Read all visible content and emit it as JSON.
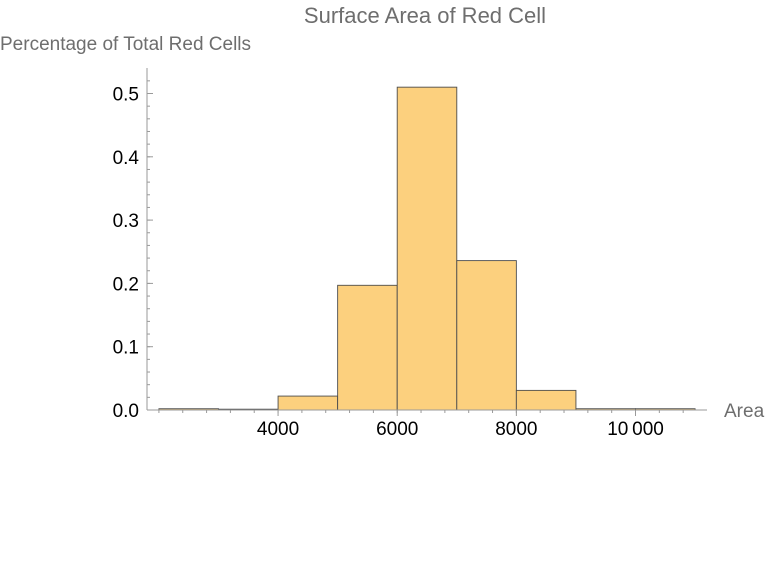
{
  "chart_data": {
    "type": "bar",
    "subtype": "histogram",
    "title": "Surface Area of Red Cell",
    "xlabel": "Area",
    "ylabel": "Percentage of Total Red Cells",
    "xlim": [
      1800,
      11200
    ],
    "ylim": [
      0,
      0.53
    ],
    "x_ticks": [
      4000,
      6000,
      8000,
      10000
    ],
    "x_tick_labels": [
      "4000",
      "6000",
      "8000",
      "10 000"
    ],
    "y_ticks": [
      0.0,
      0.1,
      0.2,
      0.3,
      0.4,
      0.5
    ],
    "y_tick_labels": [
      "0.0",
      "0.1",
      "0.2",
      "0.3",
      "0.4",
      "0.5"
    ],
    "bins": [
      {
        "start": 2000,
        "end": 3000,
        "value": 0.002
      },
      {
        "start": 3000,
        "end": 4000,
        "value": 0.0
      },
      {
        "start": 4000,
        "end": 5000,
        "value": 0.022
      },
      {
        "start": 5000,
        "end": 6000,
        "value": 0.197
      },
      {
        "start": 6000,
        "end": 7000,
        "value": 0.51
      },
      {
        "start": 7000,
        "end": 8000,
        "value": 0.236
      },
      {
        "start": 8000,
        "end": 9000,
        "value": 0.031
      },
      {
        "start": 9000,
        "end": 10000,
        "value": 0.002
      },
      {
        "start": 10000,
        "end": 11000,
        "value": 0.002
      }
    ],
    "grid": false,
    "colors": {
      "bar_fill": "#fcd07e",
      "bar_stroke": "#4d4d4d",
      "axis": "#9a9a9a",
      "tick_text": "#000000",
      "label_text": "#6e6e6e"
    }
  }
}
